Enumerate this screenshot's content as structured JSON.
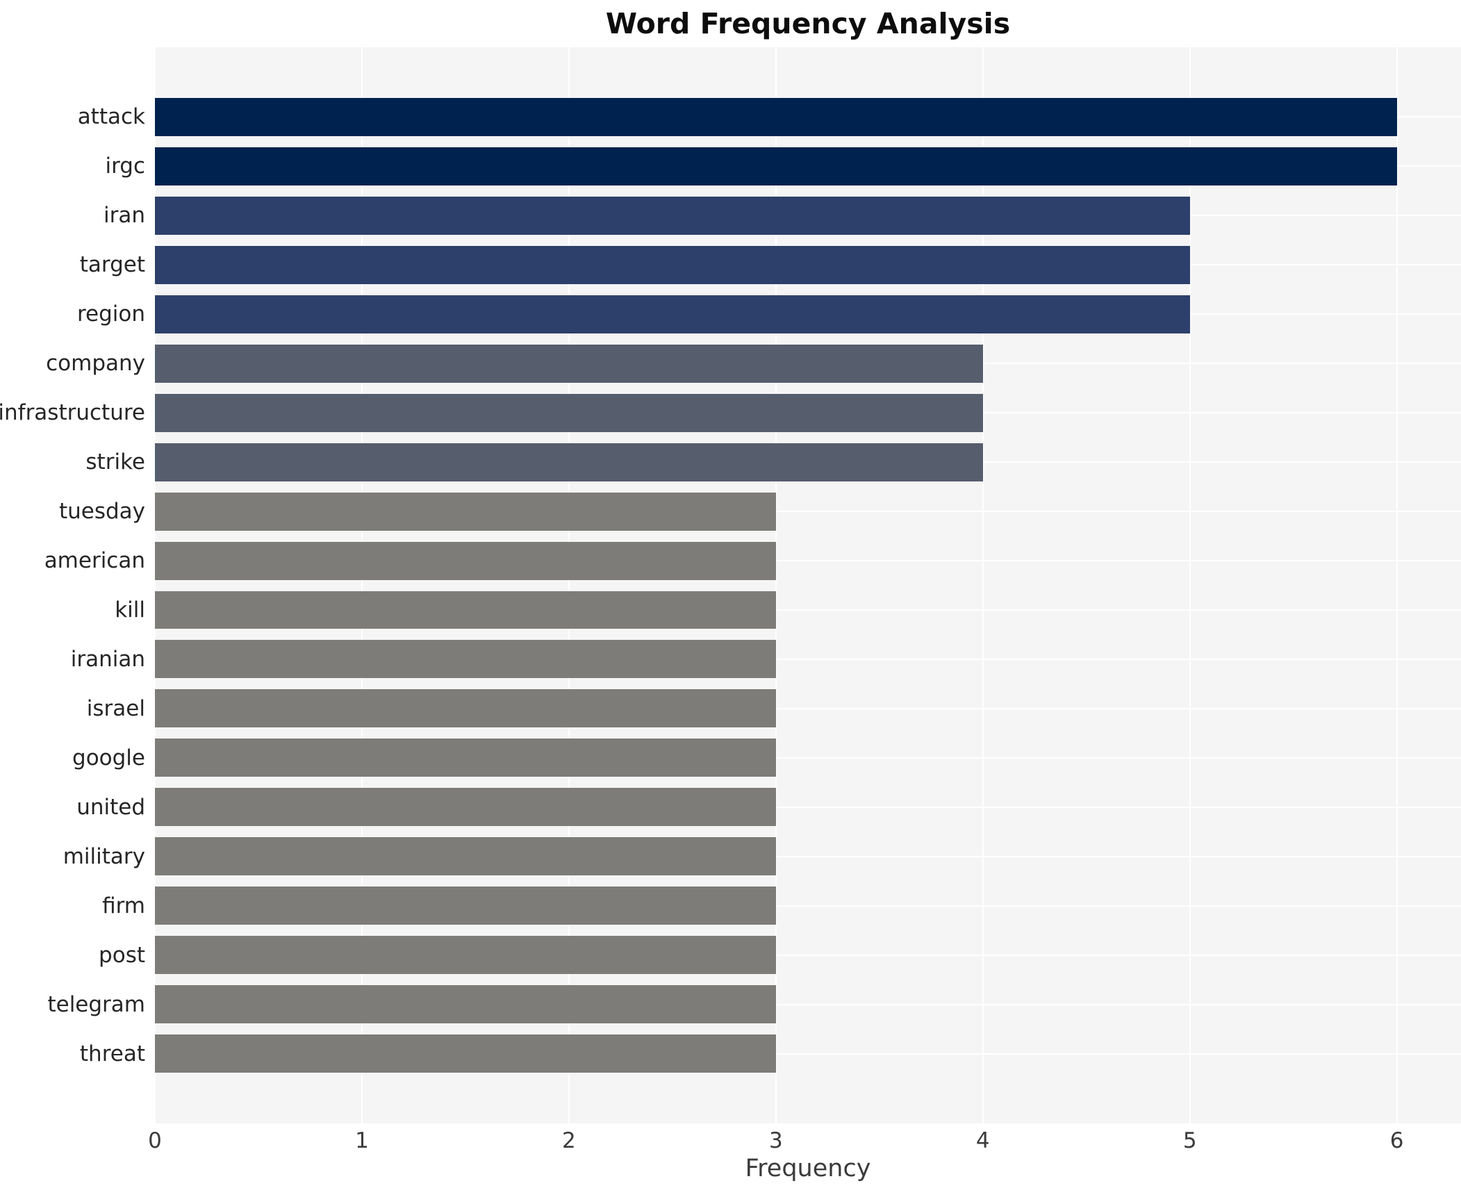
{
  "chart_data": {
    "type": "bar",
    "orientation": "horizontal",
    "title": "Word Frequency Analysis",
    "xlabel": "Frequency",
    "ylabel": "",
    "categories": [
      "attack",
      "irgc",
      "iran",
      "target",
      "region",
      "company",
      "infrastructure",
      "strike",
      "tuesday",
      "american",
      "kill",
      "iranian",
      "israel",
      "google",
      "united",
      "military",
      "firm",
      "post",
      "telegram",
      "threat"
    ],
    "values": [
      6,
      6,
      5,
      5,
      5,
      4,
      4,
      4,
      3,
      3,
      3,
      3,
      3,
      3,
      3,
      3,
      3,
      3,
      3,
      3
    ],
    "xticks": [
      0,
      1,
      2,
      3,
      4,
      5,
      6
    ],
    "xlim": [
      0,
      6.31
    ],
    "grid": true,
    "legend": "none",
    "colors": {
      "value_color_map": {
        "6": "#00224e",
        "5": "#2d406b",
        "4": "#565d6d",
        "3": "#7d7c78"
      },
      "plot_background": "#f5f5f6",
      "grid_color": "#ffffff",
      "title_color": "#0d0d0d",
      "label_color": "#262626",
      "tick_color": "#3b3b3b"
    }
  }
}
